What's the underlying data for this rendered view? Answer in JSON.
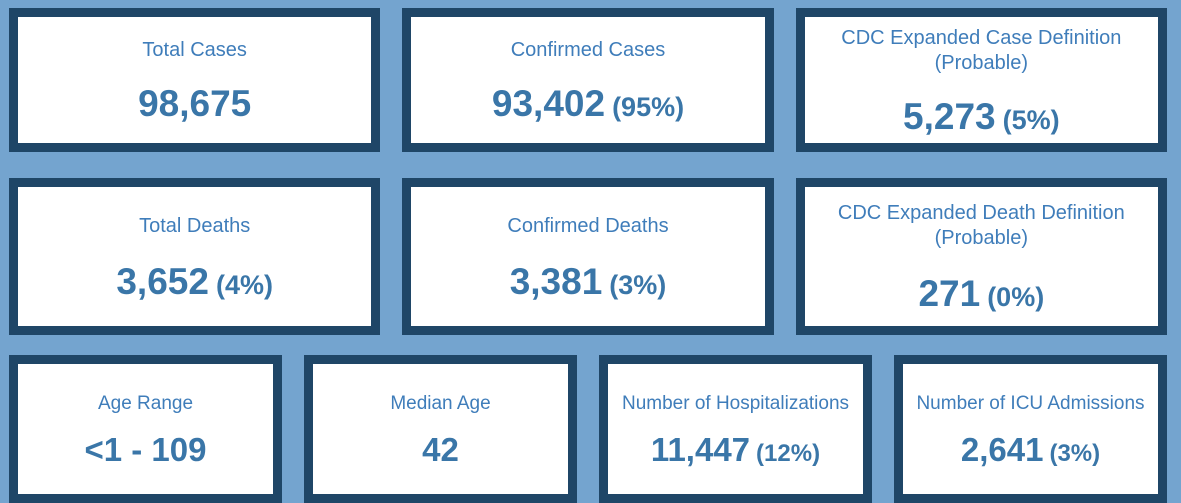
{
  "theme": {
    "page_background": "#74A4CF",
    "card_border": "#1F4667",
    "card_background": "#FFFFFF",
    "label_color": "#3F7DBA",
    "value_color": "#3A76A8"
  },
  "rows": [
    {
      "cards": [
        {
          "label": "Total Cases",
          "value": "98,675",
          "percent": ""
        },
        {
          "label": "Confirmed Cases",
          "value": "93,402",
          "percent": "(95%)"
        },
        {
          "label": "CDC Expanded Case Definition (Probable)",
          "value": "5,273",
          "percent": "(5%)"
        }
      ]
    },
    {
      "cards": [
        {
          "label": "Total Deaths",
          "value": "3,652",
          "percent": "(4%)"
        },
        {
          "label": "Confirmed Deaths",
          "value": "3,381",
          "percent": "(3%)"
        },
        {
          "label": "CDC Expanded Death Definition (Probable)",
          "value": "271",
          "percent": "(0%)"
        }
      ]
    },
    {
      "cards": [
        {
          "label": "Age Range",
          "value": "<1 - 109",
          "percent": ""
        },
        {
          "label": "Median Age",
          "value": "42",
          "percent": ""
        },
        {
          "label": "Number of Hospitalizations",
          "value": "11,447",
          "percent": "(12%)"
        },
        {
          "label": "Number of ICU Admissions",
          "value": "2,641",
          "percent": "(3%)"
        }
      ]
    }
  ]
}
